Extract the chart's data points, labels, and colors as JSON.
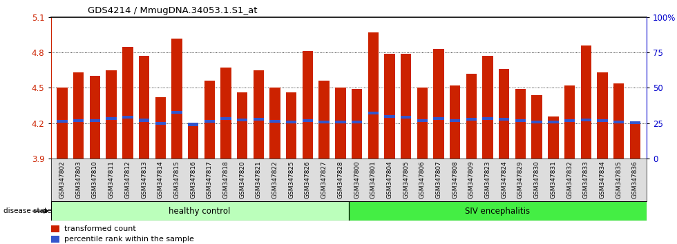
{
  "title": "GDS4214 / MmugDNA.34053.1.S1_at",
  "samples": [
    "GSM347802",
    "GSM347803",
    "GSM347810",
    "GSM347811",
    "GSM347812",
    "GSM347813",
    "GSM347814",
    "GSM347815",
    "GSM347816",
    "GSM347817",
    "GSM347818",
    "GSM347820",
    "GSM347821",
    "GSM347822",
    "GSM347825",
    "GSM347826",
    "GSM347827",
    "GSM347828",
    "GSM347800",
    "GSM347801",
    "GSM347804",
    "GSM347805",
    "GSM347806",
    "GSM347807",
    "GSM347808",
    "GSM347809",
    "GSM347823",
    "GSM347824",
    "GSM347829",
    "GSM347830",
    "GSM347831",
    "GSM347832",
    "GSM347833",
    "GSM347834",
    "GSM347835",
    "GSM347836"
  ],
  "bar_values": [
    4.5,
    4.63,
    4.6,
    4.65,
    4.85,
    4.77,
    4.42,
    4.92,
    4.19,
    4.56,
    4.67,
    4.46,
    4.65,
    4.5,
    4.46,
    4.81,
    4.56,
    4.5,
    4.49,
    4.97,
    4.79,
    4.79,
    4.5,
    4.83,
    4.52,
    4.62,
    4.77,
    4.66,
    4.49,
    4.44,
    4.26,
    4.52,
    4.86,
    4.63,
    4.54,
    4.2
  ],
  "percentile_values": [
    4.215,
    4.22,
    4.22,
    4.24,
    4.25,
    4.225,
    4.2,
    4.29,
    4.19,
    4.215,
    4.24,
    4.23,
    4.235,
    4.215,
    4.21,
    4.22,
    4.21,
    4.21,
    4.21,
    4.285,
    4.255,
    4.25,
    4.22,
    4.24,
    4.22,
    4.235,
    4.24,
    4.235,
    4.22,
    4.21,
    4.21,
    4.22,
    4.23,
    4.22,
    4.21,
    4.205
  ],
  "baseline": 3.9,
  "ylim_left": [
    3.9,
    5.1
  ],
  "yticks_left": [
    3.9,
    4.2,
    4.5,
    4.8,
    5.1
  ],
  "ytick_labels_left": [
    "3.9",
    "4.2",
    "4.5",
    "4.8",
    "5.1"
  ],
  "yticks_right_pct": [
    0,
    25,
    50,
    75,
    100
  ],
  "bar_color": "#cc2200",
  "percentile_color": "#3355cc",
  "healthy_label": "healthy control",
  "disease_label": "SIV encephalitis",
  "healthy_count": 18,
  "disease_count": 18,
  "healthy_color": "#bbffbb",
  "disease_color": "#44ee44",
  "disease_state_label": "disease state",
  "legend_bar_label": "transformed count",
  "legend_pct_label": "percentile rank within the sample",
  "dotted_lines": [
    4.2,
    4.5,
    4.8
  ],
  "ticklabel_bg": "#dddddd"
}
